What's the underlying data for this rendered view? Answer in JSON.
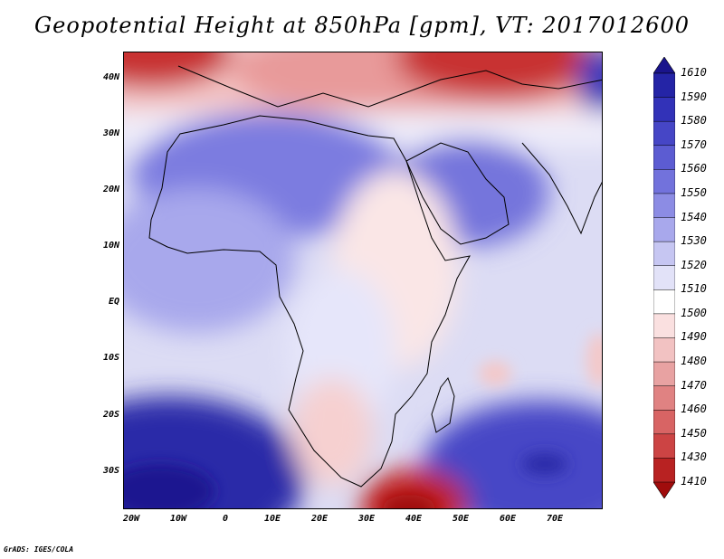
{
  "title": "Geopotential Height at 850hPa [gpm], VT: 2017012600",
  "footer": "GrADS: IGES/COLA",
  "axes": {
    "lat_labels": [
      "40N",
      "30N",
      "20N",
      "10N",
      "EQ",
      "10S",
      "20S",
      "30S"
    ],
    "lon_labels": [
      "20W",
      "10W",
      "0",
      "10E",
      "20E",
      "30E",
      "40E",
      "50E",
      "60E",
      "70E"
    ]
  },
  "colorbar": {
    "levels": [
      "1610",
      "1590",
      "1580",
      "1570",
      "1560",
      "1550",
      "1540",
      "1530",
      "1520",
      "1510",
      "1500",
      "1490",
      "1480",
      "1470",
      "1460",
      "1450",
      "1430",
      "1410"
    ],
    "colors": [
      "#1a148c",
      "#2424a6",
      "#3232b8",
      "#4646c6",
      "#5c5cd2",
      "#7272dc",
      "#8c8ce4",
      "#a8a8ec",
      "#c6c6f2",
      "#e2e2f8",
      "#ffffff",
      "#fae0e0",
      "#f2c2c2",
      "#e8a2a2",
      "#e08282",
      "#d86464",
      "#cc4444",
      "#b82222",
      "#a00c0c"
    ]
  },
  "map_fields": {
    "background": "#dcdcf4",
    "regions": [
      {
        "name": "mediterranean-low",
        "color": "#e89a9a"
      },
      {
        "name": "north-edge-low",
        "color": "#c83030"
      },
      {
        "name": "sahara-high",
        "color": "#7c7ce0"
      },
      {
        "name": "arabia-high",
        "color": "#7474dc"
      },
      {
        "name": "southwest-atlantic-high",
        "color": "#2a2aa8"
      },
      {
        "name": "south-indian-high",
        "color": "#4646c6"
      },
      {
        "name": "east-africa-low",
        "color": "#fae6e6"
      },
      {
        "name": "south-africa-low",
        "color": "#f6d0d0"
      },
      {
        "name": "mozambique-channel-low",
        "color": "#c02020"
      }
    ]
  }
}
